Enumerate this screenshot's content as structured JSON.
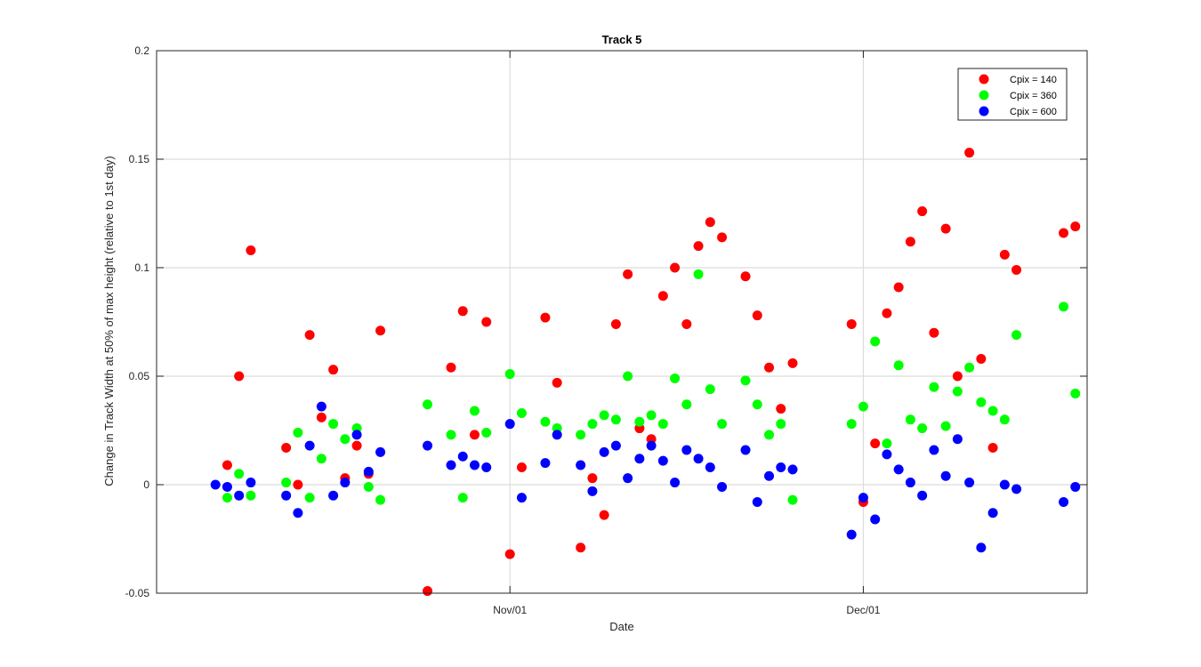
{
  "chart_data": {
    "type": "scatter",
    "title": "Track 5",
    "xlabel": "Date",
    "ylabel": "Change in Track Width at 50% of max height (relative to 1st day)",
    "x_ticks": [
      {
        "date": "Nov/01",
        "label": "Nov/01"
      },
      {
        "date": "Dec/01",
        "label": "Dec/01"
      }
    ],
    "y_ticks": [
      -0.05,
      0,
      0.05,
      0.1,
      0.15,
      0.2
    ],
    "y_tick_labels": [
      "-0.05",
      "0",
      "0.05",
      "0.1",
      "0.15",
      "0.2"
    ],
    "ylim": [
      -0.05,
      0.2
    ],
    "xlim": [
      "Oct/02",
      "Dec/20"
    ],
    "grid": true,
    "legend_position": "top-right",
    "series": [
      {
        "name": "Cpix = 140",
        "color": "#ff0000",
        "points": [
          {
            "x": "Oct/08",
            "y": 0.009
          },
          {
            "x": "Oct/09",
            "y": 0.05
          },
          {
            "x": "Oct/10",
            "y": 0.108
          },
          {
            "x": "Oct/13",
            "y": 0.017
          },
          {
            "x": "Oct/14",
            "y": 0.0
          },
          {
            "x": "Oct/15",
            "y": 0.069
          },
          {
            "x": "Oct/16",
            "y": 0.031
          },
          {
            "x": "Oct/17",
            "y": 0.053
          },
          {
            "x": "Oct/18",
            "y": 0.003
          },
          {
            "x": "Oct/19",
            "y": 0.018
          },
          {
            "x": "Oct/20",
            "y": 0.005
          },
          {
            "x": "Oct/21",
            "y": 0.071
          },
          {
            "x": "Oct/25",
            "y": -0.049
          },
          {
            "x": "Oct/27",
            "y": 0.054
          },
          {
            "x": "Oct/28",
            "y": 0.08
          },
          {
            "x": "Oct/29",
            "y": 0.023
          },
          {
            "x": "Oct/30",
            "y": 0.075
          },
          {
            "x": "Nov/01",
            "y": -0.032
          },
          {
            "x": "Nov/02",
            "y": 0.008
          },
          {
            "x": "Nov/04",
            "y": 0.077
          },
          {
            "x": "Nov/05",
            "y": 0.047
          },
          {
            "x": "Nov/07",
            "y": -0.029
          },
          {
            "x": "Nov/08",
            "y": 0.003
          },
          {
            "x": "Nov/09",
            "y": -0.014
          },
          {
            "x": "Nov/10",
            "y": 0.074
          },
          {
            "x": "Nov/11",
            "y": 0.097
          },
          {
            "x": "Nov/12",
            "y": 0.026
          },
          {
            "x": "Nov/13",
            "y": 0.021
          },
          {
            "x": "Nov/14",
            "y": 0.087
          },
          {
            "x": "Nov/15",
            "y": 0.1
          },
          {
            "x": "Nov/16",
            "y": 0.074
          },
          {
            "x": "Nov/17",
            "y": 0.11
          },
          {
            "x": "Nov/18",
            "y": 0.121
          },
          {
            "x": "Nov/19",
            "y": 0.114
          },
          {
            "x": "Nov/21",
            "y": 0.096
          },
          {
            "x": "Nov/22",
            "y": 0.078
          },
          {
            "x": "Nov/23",
            "y": 0.054
          },
          {
            "x": "Nov/24",
            "y": 0.035
          },
          {
            "x": "Nov/25",
            "y": 0.056
          },
          {
            "x": "Nov/30",
            "y": 0.074
          },
          {
            "x": "Dec/01",
            "y": -0.008
          },
          {
            "x": "Dec/02",
            "y": 0.019
          },
          {
            "x": "Dec/03",
            "y": 0.079
          },
          {
            "x": "Dec/04",
            "y": 0.091
          },
          {
            "x": "Dec/05",
            "y": 0.112
          },
          {
            "x": "Dec/06",
            "y": 0.126
          },
          {
            "x": "Dec/07",
            "y": 0.07
          },
          {
            "x": "Dec/08",
            "y": 0.118
          },
          {
            "x": "Dec/09",
            "y": 0.05
          },
          {
            "x": "Dec/10",
            "y": 0.153
          },
          {
            "x": "Dec/11",
            "y": 0.058
          },
          {
            "x": "Dec/12",
            "y": 0.017
          },
          {
            "x": "Dec/13",
            "y": 0.106
          },
          {
            "x": "Dec/14",
            "y": 0.099
          },
          {
            "x": "Dec/18",
            "y": 0.116
          },
          {
            "x": "Dec/19",
            "y": 0.119
          }
        ]
      },
      {
        "name": "Cpix = 360",
        "color": "#00ff00",
        "points": [
          {
            "x": "Oct/08",
            "y": -0.006
          },
          {
            "x": "Oct/09",
            "y": 0.005
          },
          {
            "x": "Oct/10",
            "y": -0.005
          },
          {
            "x": "Oct/13",
            "y": 0.001
          },
          {
            "x": "Oct/14",
            "y": 0.024
          },
          {
            "x": "Oct/15",
            "y": -0.006
          },
          {
            "x": "Oct/16",
            "y": 0.012
          },
          {
            "x": "Oct/17",
            "y": 0.028
          },
          {
            "x": "Oct/18",
            "y": 0.021
          },
          {
            "x": "Oct/19",
            "y": 0.026
          },
          {
            "x": "Oct/20",
            "y": -0.001
          },
          {
            "x": "Oct/21",
            "y": -0.007
          },
          {
            "x": "Oct/25",
            "y": 0.037
          },
          {
            "x": "Oct/27",
            "y": 0.023
          },
          {
            "x": "Oct/28",
            "y": -0.006
          },
          {
            "x": "Oct/29",
            "y": 0.034
          },
          {
            "x": "Oct/30",
            "y": 0.024
          },
          {
            "x": "Nov/01",
            "y": 0.051
          },
          {
            "x": "Nov/02",
            "y": 0.033
          },
          {
            "x": "Nov/04",
            "y": 0.029
          },
          {
            "x": "Nov/05",
            "y": 0.026
          },
          {
            "x": "Nov/07",
            "y": 0.023
          },
          {
            "x": "Nov/08",
            "y": 0.028
          },
          {
            "x": "Nov/09",
            "y": 0.032
          },
          {
            "x": "Nov/10",
            "y": 0.03
          },
          {
            "x": "Nov/11",
            "y": 0.05
          },
          {
            "x": "Nov/12",
            "y": 0.029
          },
          {
            "x": "Nov/13",
            "y": 0.032
          },
          {
            "x": "Nov/14",
            "y": 0.028
          },
          {
            "x": "Nov/15",
            "y": 0.049
          },
          {
            "x": "Nov/16",
            "y": 0.037
          },
          {
            "x": "Nov/17",
            "y": 0.097
          },
          {
            "x": "Nov/18",
            "y": 0.044
          },
          {
            "x": "Nov/19",
            "y": 0.028
          },
          {
            "x": "Nov/21",
            "y": 0.048
          },
          {
            "x": "Nov/22",
            "y": 0.037
          },
          {
            "x": "Nov/23",
            "y": 0.023
          },
          {
            "x": "Nov/24",
            "y": 0.028
          },
          {
            "x": "Nov/25",
            "y": -0.007
          },
          {
            "x": "Nov/30",
            "y": 0.028
          },
          {
            "x": "Dec/01",
            "y": 0.036
          },
          {
            "x": "Dec/02",
            "y": 0.066
          },
          {
            "x": "Dec/03",
            "y": 0.019
          },
          {
            "x": "Dec/04",
            "y": 0.055
          },
          {
            "x": "Dec/05",
            "y": 0.03
          },
          {
            "x": "Dec/06",
            "y": 0.026
          },
          {
            "x": "Dec/07",
            "y": 0.045
          },
          {
            "x": "Dec/08",
            "y": 0.027
          },
          {
            "x": "Dec/09",
            "y": 0.043
          },
          {
            "x": "Dec/10",
            "y": 0.054
          },
          {
            "x": "Dec/11",
            "y": 0.038
          },
          {
            "x": "Dec/12",
            "y": 0.034
          },
          {
            "x": "Dec/13",
            "y": 0.03
          },
          {
            "x": "Dec/14",
            "y": 0.069
          },
          {
            "x": "Dec/18",
            "y": 0.082
          },
          {
            "x": "Dec/19",
            "y": 0.042
          }
        ]
      },
      {
        "name": "Cpix = 600",
        "color": "#0000ff",
        "points": [
          {
            "x": "Oct/07",
            "y": 0.0
          },
          {
            "x": "Oct/08",
            "y": -0.001
          },
          {
            "x": "Oct/09",
            "y": -0.005
          },
          {
            "x": "Oct/10",
            "y": 0.001
          },
          {
            "x": "Oct/13",
            "y": -0.005
          },
          {
            "x": "Oct/14",
            "y": -0.013
          },
          {
            "x": "Oct/15",
            "y": 0.018
          },
          {
            "x": "Oct/16",
            "y": 0.036
          },
          {
            "x": "Oct/17",
            "y": -0.005
          },
          {
            "x": "Oct/18",
            "y": 0.001
          },
          {
            "x": "Oct/19",
            "y": 0.023
          },
          {
            "x": "Oct/20",
            "y": 0.006
          },
          {
            "x": "Oct/21",
            "y": 0.015
          },
          {
            "x": "Oct/25",
            "y": 0.018
          },
          {
            "x": "Oct/27",
            "y": 0.009
          },
          {
            "x": "Oct/28",
            "y": 0.013
          },
          {
            "x": "Oct/29",
            "y": 0.009
          },
          {
            "x": "Oct/30",
            "y": 0.008
          },
          {
            "x": "Nov/01",
            "y": 0.028
          },
          {
            "x": "Nov/02",
            "y": -0.006
          },
          {
            "x": "Nov/04",
            "y": 0.01
          },
          {
            "x": "Nov/05",
            "y": 0.023
          },
          {
            "x": "Nov/07",
            "y": 0.009
          },
          {
            "x": "Nov/08",
            "y": -0.003
          },
          {
            "x": "Nov/09",
            "y": 0.015
          },
          {
            "x": "Nov/10",
            "y": 0.018
          },
          {
            "x": "Nov/11",
            "y": 0.003
          },
          {
            "x": "Nov/12",
            "y": 0.012
          },
          {
            "x": "Nov/13",
            "y": 0.018
          },
          {
            "x": "Nov/14",
            "y": 0.011
          },
          {
            "x": "Nov/15",
            "y": 0.001
          },
          {
            "x": "Nov/16",
            "y": 0.016
          },
          {
            "x": "Nov/17",
            "y": 0.012
          },
          {
            "x": "Nov/18",
            "y": 0.008
          },
          {
            "x": "Nov/19",
            "y": -0.001
          },
          {
            "x": "Nov/21",
            "y": 0.016
          },
          {
            "x": "Nov/22",
            "y": -0.008
          },
          {
            "x": "Nov/23",
            "y": 0.004
          },
          {
            "x": "Nov/24",
            "y": 0.008
          },
          {
            "x": "Nov/25",
            "y": 0.007
          },
          {
            "x": "Nov/30",
            "y": -0.023
          },
          {
            "x": "Dec/01",
            "y": -0.006
          },
          {
            "x": "Dec/02",
            "y": -0.016
          },
          {
            "x": "Dec/03",
            "y": 0.014
          },
          {
            "x": "Dec/04",
            "y": 0.007
          },
          {
            "x": "Dec/05",
            "y": 0.001
          },
          {
            "x": "Dec/06",
            "y": -0.005
          },
          {
            "x": "Dec/07",
            "y": 0.016
          },
          {
            "x": "Dec/08",
            "y": 0.004
          },
          {
            "x": "Dec/09",
            "y": 0.021
          },
          {
            "x": "Dec/10",
            "y": 0.001
          },
          {
            "x": "Dec/11",
            "y": -0.029
          },
          {
            "x": "Dec/12",
            "y": -0.013
          },
          {
            "x": "Dec/13",
            "y": 0.0
          },
          {
            "x": "Dec/14",
            "y": -0.002
          },
          {
            "x": "Dec/18",
            "y": -0.008
          },
          {
            "x": "Dec/19",
            "y": -0.001
          }
        ]
      }
    ]
  }
}
